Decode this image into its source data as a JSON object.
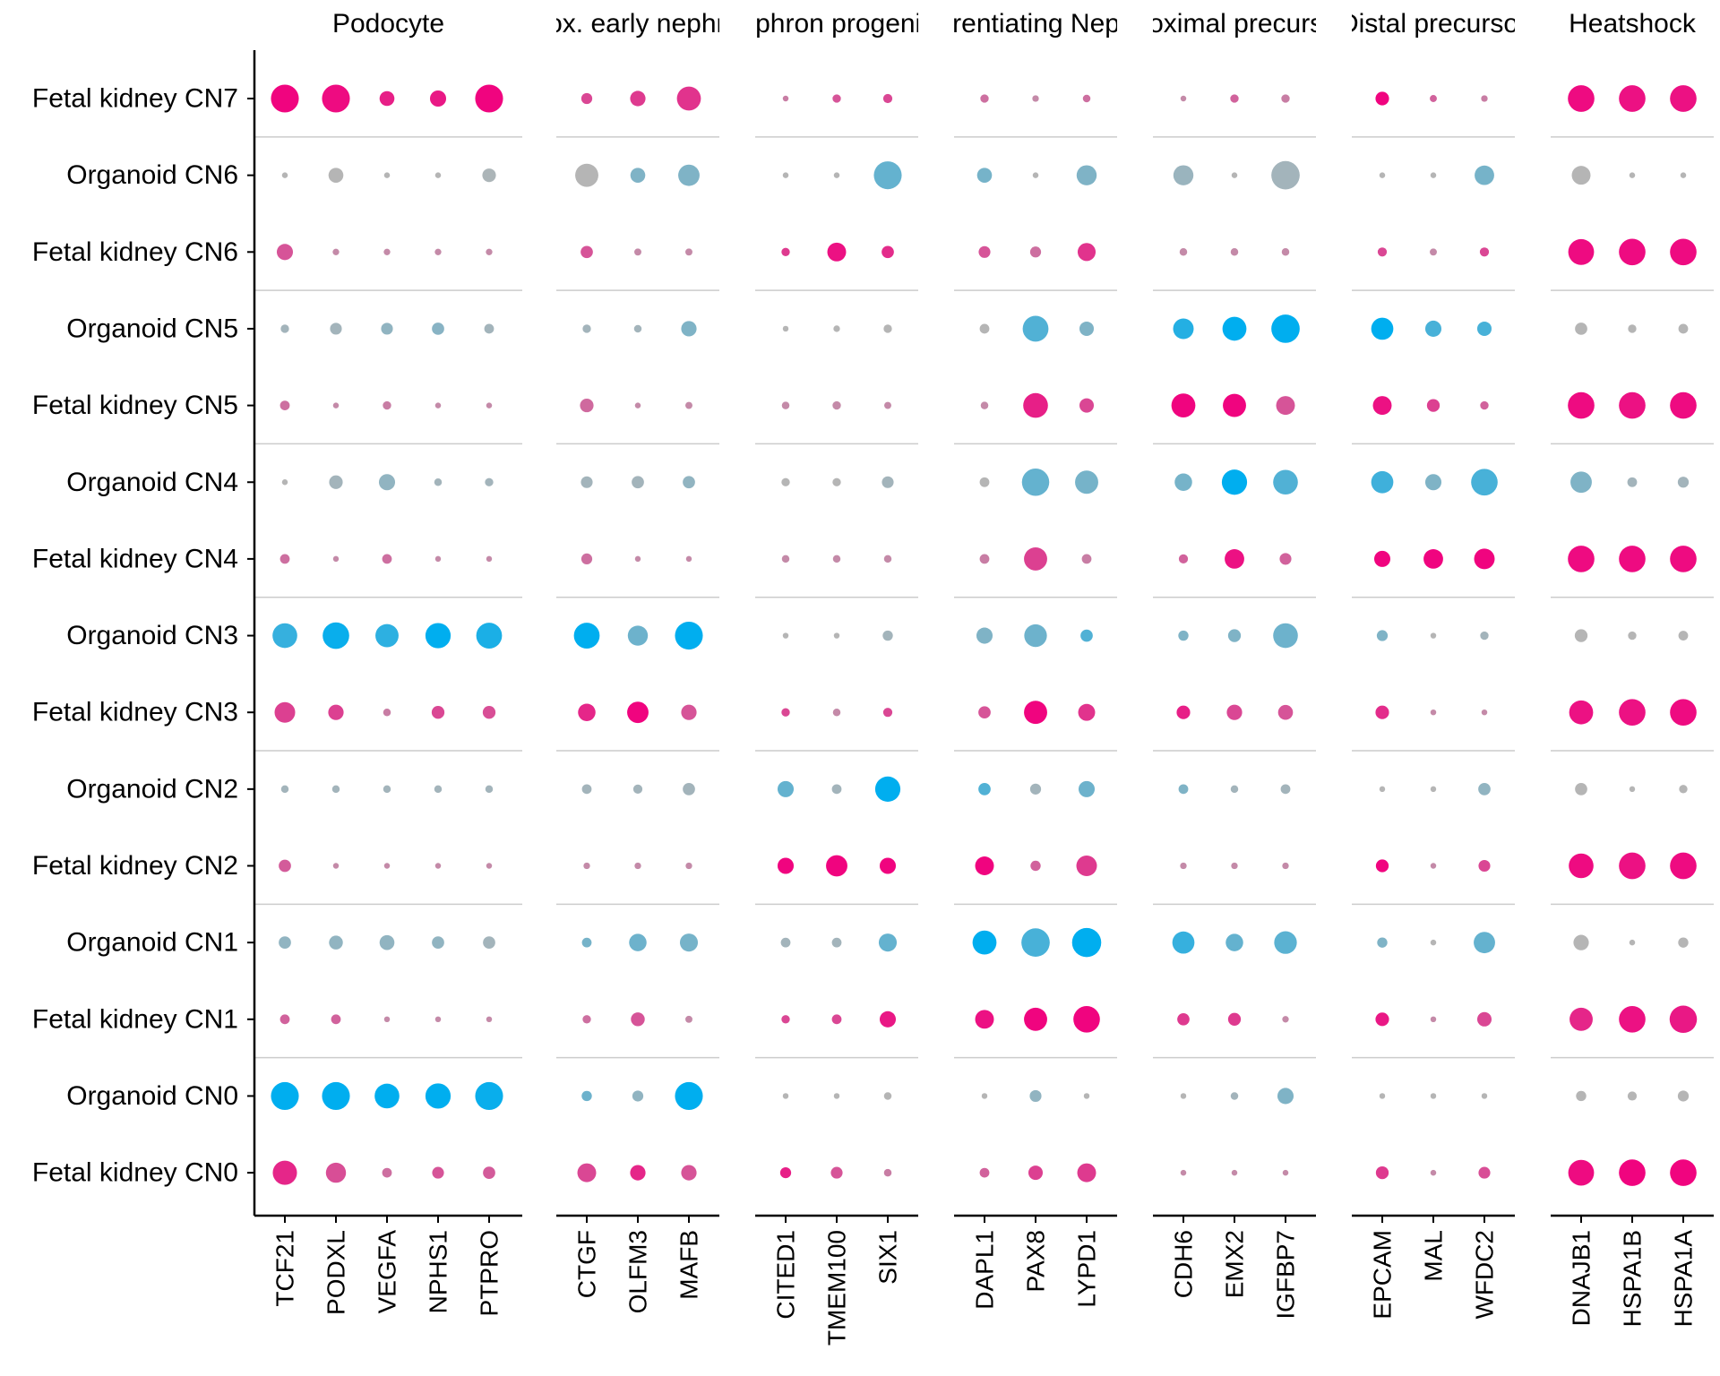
{
  "chart_data": {
    "type": "scatter",
    "rows": [
      "Fetal kidney CN7",
      "Organoid CN6",
      "Fetal kidney CN6",
      "Organoid CN5",
      "Fetal kidney CN5",
      "Organoid CN4",
      "Fetal kidney CN4",
      "Organoid CN3",
      "Fetal kidney CN3",
      "Organoid CN2",
      "Fetal kidney CN2",
      "Organoid CN1",
      "Fetal kidney CN1",
      "Organoid CN0",
      "Fetal kidney CN0"
    ],
    "colors": {
      "fetal_high": "#f0047f",
      "fetal_low": "#c48aa8",
      "organoid_high": "#00aeef",
      "organoid_low": "#b5b5b5"
    },
    "panels": [
      {
        "title": "Podocyte",
        "genes": [
          "TCF21",
          "PODXL",
          "VEGFA",
          "NPHS1",
          "PTPRO"
        ],
        "size": [
          [
            0.9,
            0.9,
            0.4,
            0.45,
            0.9
          ],
          [
            0.05,
            0.4,
            0.05,
            0.05,
            0.35
          ],
          [
            0.45,
            0.08,
            0.08,
            0.08,
            0.08
          ],
          [
            0.15,
            0.28,
            0.28,
            0.3,
            0.2
          ],
          [
            0.2,
            0.05,
            0.15,
            0.05,
            0.05
          ],
          [
            0.05,
            0.35,
            0.45,
            0.12,
            0.15
          ],
          [
            0.2,
            0.05,
            0.2,
            0.05,
            0.05
          ],
          [
            0.78,
            0.85,
            0.72,
            0.8,
            0.82
          ],
          [
            0.62,
            0.42,
            0.12,
            0.32,
            0.32
          ],
          [
            0.12,
            0.12,
            0.12,
            0.12,
            0.12
          ],
          [
            0.3,
            0.05,
            0.05,
            0.05,
            0.05
          ],
          [
            0.3,
            0.36,
            0.4,
            0.3,
            0.3
          ],
          [
            0.2,
            0.2,
            0.05,
            0.05,
            0.05
          ],
          [
            0.9,
            0.9,
            0.78,
            0.8,
            0.9
          ],
          [
            0.76,
            0.6,
            0.2,
            0.28,
            0.3
          ]
        ],
        "color": [
          [
            1.0,
            0.95,
            0.8,
            0.85,
            1.0
          ],
          [
            0.0,
            0.0,
            0.0,
            0.0,
            0.05
          ],
          [
            0.4,
            0.0,
            0.0,
            0.0,
            0.0
          ],
          [
            0.1,
            0.1,
            0.2,
            0.25,
            0.1
          ],
          [
            0.2,
            0.0,
            0.1,
            0.0,
            0.0
          ],
          [
            0.0,
            0.1,
            0.2,
            0.1,
            0.1
          ],
          [
            0.2,
            0.0,
            0.2,
            0.0,
            0.0
          ],
          [
            0.7,
            0.95,
            0.75,
            1.0,
            0.85
          ],
          [
            0.55,
            0.55,
            0.1,
            0.5,
            0.45
          ],
          [
            0.1,
            0.1,
            0.1,
            0.1,
            0.1
          ],
          [
            0.35,
            0.0,
            0.0,
            0.0,
            0.0
          ],
          [
            0.2,
            0.2,
            0.2,
            0.2,
            0.1
          ],
          [
            0.3,
            0.3,
            0.0,
            0.0,
            0.0
          ],
          [
            1.0,
            1.0,
            1.0,
            1.0,
            0.95
          ],
          [
            0.75,
            0.45,
            0.2,
            0.4,
            0.35
          ]
        ]
      },
      {
        "title": "Prox. early nephron",
        "genes": [
          "CTGF",
          "OLFM3",
          "MAFB"
        ],
        "size": [
          [
            0.25,
            0.42,
            0.75
          ],
          [
            0.72,
            0.4,
            0.65
          ],
          [
            0.3,
            0.1,
            0.1
          ],
          [
            0.15,
            0.12,
            0.42
          ],
          [
            0.35,
            0.05,
            0.1
          ],
          [
            0.28,
            0.3,
            0.3
          ],
          [
            0.25,
            0.05,
            0.05
          ],
          [
            0.82,
            0.6,
            0.9
          ],
          [
            0.5,
            0.65,
            0.42
          ],
          [
            0.2,
            0.18,
            0.3
          ],
          [
            0.08,
            0.08,
            0.08
          ],
          [
            0.2,
            0.5,
            0.52
          ],
          [
            0.15,
            0.36,
            0.1
          ],
          [
            0.22,
            0.25,
            0.9
          ],
          [
            0.55,
            0.42,
            0.42
          ]
        ],
        "color": [
          [
            0.5,
            0.6,
            0.65
          ],
          [
            0.0,
            0.3,
            0.3
          ],
          [
            0.4,
            0.0,
            0.0
          ],
          [
            0.1,
            0.1,
            0.3
          ],
          [
            0.25,
            0.0,
            0.0
          ],
          [
            0.1,
            0.1,
            0.2
          ],
          [
            0.2,
            0.0,
            0.0
          ],
          [
            1.0,
            0.4,
            1.0
          ],
          [
            0.75,
            1.0,
            0.4
          ],
          [
            0.1,
            0.1,
            0.1
          ],
          [
            0.0,
            0.0,
            0.0
          ],
          [
            0.35,
            0.4,
            0.35
          ],
          [
            0.2,
            0.4,
            0.0
          ],
          [
            0.4,
            0.2,
            1.0
          ],
          [
            0.5,
            0.75,
            0.4
          ]
        ]
      },
      {
        "title": "Nephron progenitor",
        "genes": [
          "CITED1",
          "TMEM100",
          "SIX1"
        ],
        "size": [
          [
            0.05,
            0.15,
            0.18
          ],
          [
            0.05,
            0.05,
            0.9
          ],
          [
            0.15,
            0.55,
            0.3
          ],
          [
            0.05,
            0.08,
            0.15
          ],
          [
            0.12,
            0.15,
            0.1
          ],
          [
            0.15,
            0.15,
            0.28
          ],
          [
            0.12,
            0.12,
            0.12
          ],
          [
            0.05,
            0.05,
            0.22
          ],
          [
            0.15,
            0.12,
            0.18
          ],
          [
            0.45,
            0.2,
            0.8
          ],
          [
            0.45,
            0.65,
            0.45
          ],
          [
            0.2,
            0.2,
            0.52
          ],
          [
            0.15,
            0.2,
            0.45
          ],
          [
            0.05,
            0.05,
            0.12
          ],
          [
            0.25,
            0.28,
            0.12
          ]
        ],
        "color": [
          [
            0.1,
            0.4,
            0.5
          ],
          [
            0.0,
            0.0,
            0.45
          ],
          [
            0.6,
            0.9,
            0.7
          ],
          [
            0.0,
            0.0,
            0.0
          ],
          [
            0.0,
            0.0,
            0.0
          ],
          [
            0.0,
            0.0,
            0.1
          ],
          [
            0.0,
            0.0,
            0.0
          ],
          [
            0.0,
            0.0,
            0.1
          ],
          [
            0.5,
            0.0,
            0.5
          ],
          [
            0.45,
            0.1,
            1.0
          ],
          [
            1.0,
            1.0,
            1.0
          ],
          [
            0.1,
            0.1,
            0.45
          ],
          [
            0.5,
            0.5,
            0.85
          ],
          [
            0.0,
            0.0,
            0.0
          ],
          [
            0.8,
            0.4,
            0.1
          ]
        ]
      },
      {
        "title": "Differentiating Nephron",
        "genes": [
          "DAPL1",
          "PAX8",
          "LYPD1"
        ],
        "size": [
          [
            0.15,
            0.08,
            0.12
          ],
          [
            0.4,
            0.05,
            0.6
          ],
          [
            0.28,
            0.25,
            0.52
          ],
          [
            0.2,
            0.82,
            0.38
          ],
          [
            0.12,
            0.78,
            0.38
          ],
          [
            0.2,
            0.88,
            0.72
          ],
          [
            0.2,
            0.72,
            0.2
          ],
          [
            0.45,
            0.7,
            0.3
          ],
          [
            0.3,
            0.72,
            0.48
          ],
          [
            0.3,
            0.25,
            0.45
          ],
          [
            0.55,
            0.22,
            0.62
          ],
          [
            0.75,
            0.92,
            0.95
          ],
          [
            0.55,
            0.72,
            0.85
          ],
          [
            0.05,
            0.28,
            0.05
          ],
          [
            0.2,
            0.38,
            0.55
          ]
        ],
        "color": [
          [
            0.2,
            0.0,
            0.2
          ],
          [
            0.35,
            0.0,
            0.3
          ],
          [
            0.4,
            0.2,
            0.65
          ],
          [
            0.0,
            0.55,
            0.3
          ],
          [
            0.0,
            0.8,
            0.5
          ],
          [
            0.0,
            0.45,
            0.35
          ],
          [
            0.1,
            0.55,
            0.1
          ],
          [
            0.3,
            0.4,
            0.55
          ],
          [
            0.4,
            1.0,
            0.65
          ],
          [
            0.55,
            0.1,
            0.4
          ],
          [
            1.0,
            0.3,
            0.6
          ],
          [
            1.0,
            0.6,
            1.0
          ],
          [
            0.9,
            1.0,
            1.0
          ],
          [
            0.0,
            0.2,
            0.0
          ],
          [
            0.3,
            0.55,
            0.6
          ]
        ]
      },
      {
        "title": "Proximal precursor",
        "genes": [
          "CDH6",
          "EMX2",
          "IGFBP7"
        ],
        "size": [
          [
            0.05,
            0.15,
            0.15
          ],
          [
            0.6,
            0.05,
            0.92
          ],
          [
            0.12,
            0.12,
            0.12
          ],
          [
            0.62,
            0.75,
            0.92
          ],
          [
            0.75,
            0.72,
            0.55
          ],
          [
            0.5,
            0.8,
            0.78
          ],
          [
            0.18,
            0.58,
            0.28
          ],
          [
            0.22,
            0.32,
            0.78
          ],
          [
            0.35,
            0.42,
            0.4
          ],
          [
            0.2,
            0.12,
            0.2
          ],
          [
            0.08,
            0.08,
            0.08
          ],
          [
            0.68,
            0.5,
            0.7
          ],
          [
            0.3,
            0.32,
            0.08
          ],
          [
            0.05,
            0.12,
            0.45
          ],
          [
            0.05,
            0.05,
            0.05
          ]
        ],
        "color": [
          [
            0.0,
            0.3,
            0.1
          ],
          [
            0.15,
            0.0,
            0.1
          ],
          [
            0.0,
            0.0,
            0.0
          ],
          [
            0.8,
            1.0,
            1.0
          ],
          [
            1.0,
            1.0,
            0.4
          ],
          [
            0.35,
            1.0,
            0.55
          ],
          [
            0.3,
            0.9,
            0.3
          ],
          [
            0.3,
            0.3,
            0.4
          ],
          [
            0.8,
            0.5,
            0.4
          ],
          [
            0.3,
            0.1,
            0.1
          ],
          [
            0.0,
            0.0,
            0.0
          ],
          [
            0.7,
            0.45,
            0.5
          ],
          [
            0.6,
            0.6,
            0.0
          ],
          [
            0.0,
            0.1,
            0.3
          ],
          [
            0.0,
            0.0,
            0.0
          ]
        ]
      },
      {
        "title": "Distal precursor",
        "genes": [
          "EPCAM",
          "MAL",
          "WFDC2"
        ],
        "size": [
          [
            0.35,
            0.1,
            0.08
          ],
          [
            0.05,
            0.05,
            0.58
          ],
          [
            0.18,
            0.1,
            0.18
          ],
          [
            0.68,
            0.45,
            0.38
          ],
          [
            0.55,
            0.32,
            0.15
          ],
          [
            0.68,
            0.45,
            0.85
          ],
          [
            0.45,
            0.58,
            0.62
          ],
          [
            0.25,
            0.05,
            0.15
          ],
          [
            0.35,
            0.05,
            0.05
          ],
          [
            0.05,
            0.05,
            0.3
          ],
          [
            0.32,
            0.05,
            0.28
          ],
          [
            0.22,
            0.05,
            0.65
          ],
          [
            0.35,
            0.05,
            0.38
          ],
          [
            0.05,
            0.05,
            0.05
          ],
          [
            0.32,
            0.05,
            0.28
          ]
        ],
        "color": [
          [
            1.0,
            0.3,
            0.1
          ],
          [
            0.0,
            0.0,
            0.35
          ],
          [
            0.5,
            0.0,
            0.5
          ],
          [
            1.0,
            0.6,
            0.6
          ],
          [
            0.9,
            0.55,
            0.3
          ],
          [
            0.65,
            0.3,
            0.6
          ],
          [
            1.0,
            1.0,
            1.0
          ],
          [
            0.3,
            0.0,
            0.1
          ],
          [
            0.7,
            0.0,
            0.0
          ],
          [
            0.0,
            0.0,
            0.2
          ],
          [
            1.0,
            0.0,
            0.5
          ],
          [
            0.3,
            0.0,
            0.45
          ],
          [
            0.85,
            0.0,
            0.5
          ],
          [
            0.0,
            0.0,
            0.0
          ],
          [
            0.6,
            0.0,
            0.45
          ]
        ]
      },
      {
        "title": "Heatshock",
        "genes": [
          "DNAJB1",
          "HSPA1B",
          "HSPA1A"
        ],
        "size": [
          [
            0.85,
            0.85,
            0.85
          ],
          [
            0.55,
            0.05,
            0.05
          ],
          [
            0.82,
            0.85,
            0.85
          ],
          [
            0.3,
            0.15,
            0.2
          ],
          [
            0.85,
            0.85,
            0.85
          ],
          [
            0.65,
            0.2,
            0.25
          ],
          [
            0.85,
            0.85,
            0.85
          ],
          [
            0.32,
            0.15,
            0.2
          ],
          [
            0.75,
            0.85,
            0.85
          ],
          [
            0.3,
            0.05,
            0.15
          ],
          [
            0.78,
            0.85,
            0.85
          ],
          [
            0.42,
            0.05,
            0.22
          ],
          [
            0.72,
            0.85,
            0.88
          ],
          [
            0.22,
            0.18,
            0.25
          ],
          [
            0.82,
            0.85,
            0.85
          ]
        ],
        "color": [
          [
            0.95,
            0.9,
            0.9
          ],
          [
            0.0,
            0.0,
            0.0
          ],
          [
            0.95,
            0.95,
            0.95
          ],
          [
            0.0,
            0.0,
            0.0
          ],
          [
            0.95,
            0.9,
            0.95
          ],
          [
            0.3,
            0.1,
            0.1
          ],
          [
            0.95,
            0.95,
            0.95
          ],
          [
            0.0,
            0.0,
            0.0
          ],
          [
            0.9,
            0.9,
            0.95
          ],
          [
            0.0,
            0.0,
            0.0
          ],
          [
            0.95,
            0.9,
            0.95
          ],
          [
            0.0,
            0.0,
            0.0
          ],
          [
            0.75,
            0.9,
            0.85
          ],
          [
            0.0,
            0.0,
            0.0
          ],
          [
            0.95,
            1.0,
            1.0
          ]
        ]
      }
    ]
  }
}
